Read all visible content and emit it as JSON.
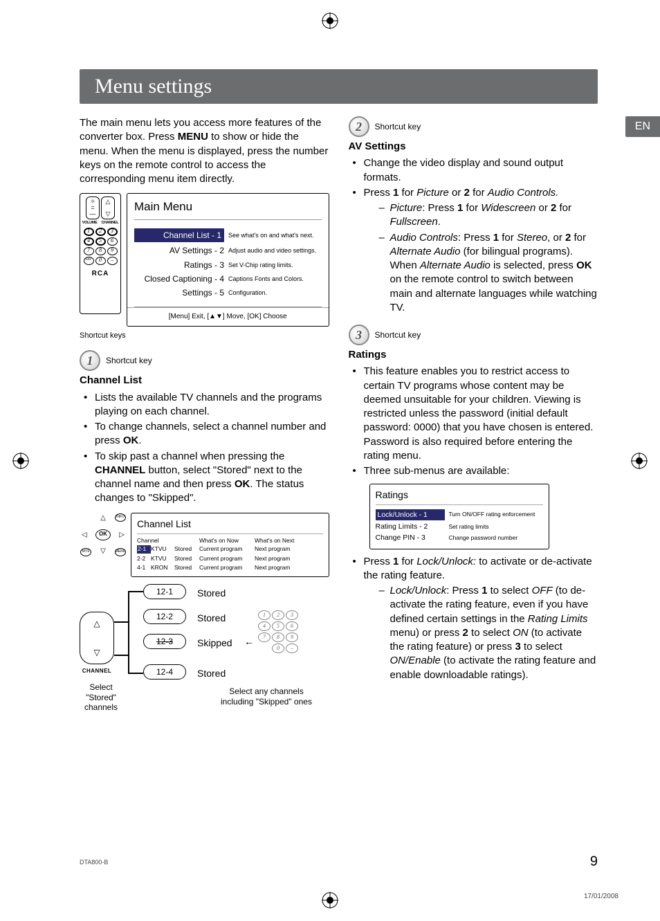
{
  "meta": {
    "lang_tab": "EN",
    "footer_model": "DTA800-B",
    "page_number": "9",
    "footer_date": "17/01/2008"
  },
  "header": {
    "title": "Menu settings"
  },
  "left": {
    "intro": "The main menu lets you access more features of the converter box. Press ",
    "intro_menu": "MENU",
    "intro2": " to show or hide the menu. When the menu is displayed, press the number keys on the remote control to access the corresponding menu item directly.",
    "remote": {
      "vol_label": "VOLUME",
      "ch_label": "CHANNEL",
      "brand": "RCA",
      "keys": [
        "1",
        "2",
        "3",
        "4",
        "5",
        "6",
        "7",
        "8",
        "9",
        "FAV",
        "0",
        "–"
      ]
    },
    "main_menu": {
      "title": "Main Menu",
      "items": [
        {
          "label": "Channel List - 1",
          "desc": "See what's on and what's next.",
          "selected": true
        },
        {
          "label": "AV Settings - 2",
          "desc": "Adjust audio and video settings.",
          "selected": false
        },
        {
          "label": "Ratings - 3",
          "desc": "Set V-Chip rating limits.",
          "selected": false
        },
        {
          "label": "Closed Captioning - 4",
          "desc": "Captions Fonts and Colors.",
          "selected": false
        },
        {
          "label": "Settings - 5",
          "desc": "Configuration.",
          "selected": false
        }
      ],
      "footer": "[Menu] Exit, [▲▼] Move, [OK] Choose"
    },
    "shortcut_keys_caption": "Shortcut keys",
    "sc1": {
      "num": "1",
      "label": "Shortcut key"
    },
    "channel_list": {
      "title": "Channel List",
      "b1": "Lists the available TV channels and the programs playing on each channel.",
      "b2a": "To change channels, select a channel number and press ",
      "b2b": "OK",
      "b2c": ".",
      "b3a": "To skip past a channel when pressing the ",
      "b3b": "CHANNEL",
      "b3c": " button, select \"Stored\" next to the channel name and then press ",
      "b3d": "OK",
      "b3e": ". The status changes to \"Skipped\"."
    },
    "cl_box": {
      "title": "Channel List",
      "hdr": [
        "Channel",
        "What's on Now",
        "What's on Next"
      ],
      "rows": [
        {
          "ch": "2-1",
          "name": "KTVU",
          "status": "Stored",
          "now": "Current program",
          "next": "Next program",
          "selected": true
        },
        {
          "ch": "2-2",
          "name": "KTVU",
          "status": "Stored",
          "now": "Current program",
          "next": "Next program",
          "selected": false
        },
        {
          "ch": "4-1",
          "name": "KRON",
          "status": "Stored",
          "now": "Current program",
          "next": "Next program",
          "selected": false
        }
      ]
    },
    "diagram": {
      "channel_label": "CHANNEL",
      "pills": [
        "12-1",
        "12-2",
        "12-3",
        "12-4"
      ],
      "statuses": [
        "Stored",
        "Stored",
        "Skipped",
        "Stored"
      ],
      "mini_keys": [
        "1",
        "2",
        "3",
        "4",
        "5",
        "6",
        "7",
        "8",
        "9",
        "0",
        "–"
      ],
      "caption_left": "Select\n\"Stored\"\nchannels",
      "caption_right": "Select any channels\nincluding \"Skipped\" ones"
    }
  },
  "right": {
    "sc2": {
      "num": "2",
      "label": "Shortcut key"
    },
    "av": {
      "title": "AV Settings",
      "b1": "Change the video display and sound output formats.",
      "b2a": "Press ",
      "b2b": "1",
      "b2c": " for ",
      "b2d": "Picture",
      "b2e": " or ",
      "b2f": "2",
      "b2g": " for ",
      "b2h": "Audio Controls.",
      "d1a": "Picture",
      "d1b": ": Press ",
      "d1c": "1",
      "d1d": " for ",
      "d1e": "Widescreen",
      "d1f": " or ",
      "d1g": "2",
      "d1h": " for ",
      "d1i": "Fullscreen",
      "d1j": ".",
      "d2a": "Audio Controls",
      "d2b": ": Press ",
      "d2c": "1",
      "d2d": " for ",
      "d2e": "Stereo",
      "d2f": ", or ",
      "d2g": "2",
      "d2h": " for ",
      "d2i": "Alternate Audio",
      "d2j": " (for bilingual programs). When ",
      "d2k": "Alternate Audio",
      "d2l": " is selected, press ",
      "d2m": "OK",
      "d2n": " on the remote control to switch between main and alternate languages while watching TV."
    },
    "sc3": {
      "num": "3",
      "label": "Shortcut key"
    },
    "ratings": {
      "title": "Ratings",
      "b1": "This feature enables you to restrict access to certain TV programs whose content may be deemed unsuitable for your children. Viewing is restricted unless the password (initial default password: 0000) that you have chosen is entered. Password is also required before entering the rating menu.",
      "b2": "Three sub-menus are available:",
      "box_title": "Ratings",
      "box_items": [
        {
          "label": "Lock/Unlock - 1",
          "desc": "Turn ON/OFF rating enforcement",
          "selected": true
        },
        {
          "label": "Rating Limits - 2",
          "desc": "Set rating limits",
          "selected": false
        },
        {
          "label": "Change PIN - 3",
          "desc": "Change password number",
          "selected": false
        }
      ],
      "b3a": "Press ",
      "b3b": "1",
      "b3c": " for ",
      "b3d": "Lock/Unlock:",
      "b3e": " to activate or de-activate the rating feature.",
      "d1a": "Lock/Unlock",
      "d1b": ": Press ",
      "d1c": "1",
      "d1d": " to select ",
      "d1e": "OFF",
      "d1f": " (to de-activate the rating feature, even if you have defined certain settings in the ",
      "d1g": "Rating Limits",
      "d1h": " menu) or press ",
      "d1i": "2",
      "d1j": " to select ",
      "d1k": "ON",
      "d1l": " (to activate the rating feature) or press ",
      "d1m": "3",
      "d1n": " to select ",
      "d1o": "ON/Enable",
      "d1p": " (to activate the rating feature and enable downloadable ratings)."
    }
  },
  "colors": {
    "header_bg": "#6c6d6f",
    "highlight_bg": "#27286a",
    "text": "#000000"
  }
}
